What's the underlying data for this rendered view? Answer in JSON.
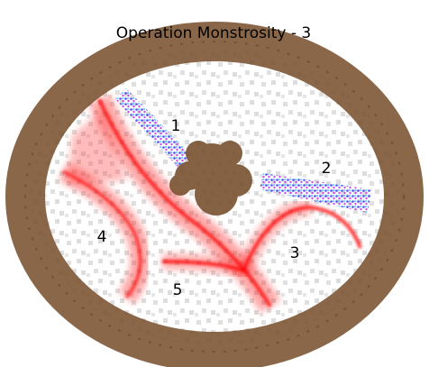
{
  "header": {
    "title": "Operation Monstrosity - 3"
  },
  "labels": [
    "1",
    "2",
    "3",
    "4",
    "5"
  ]
}
